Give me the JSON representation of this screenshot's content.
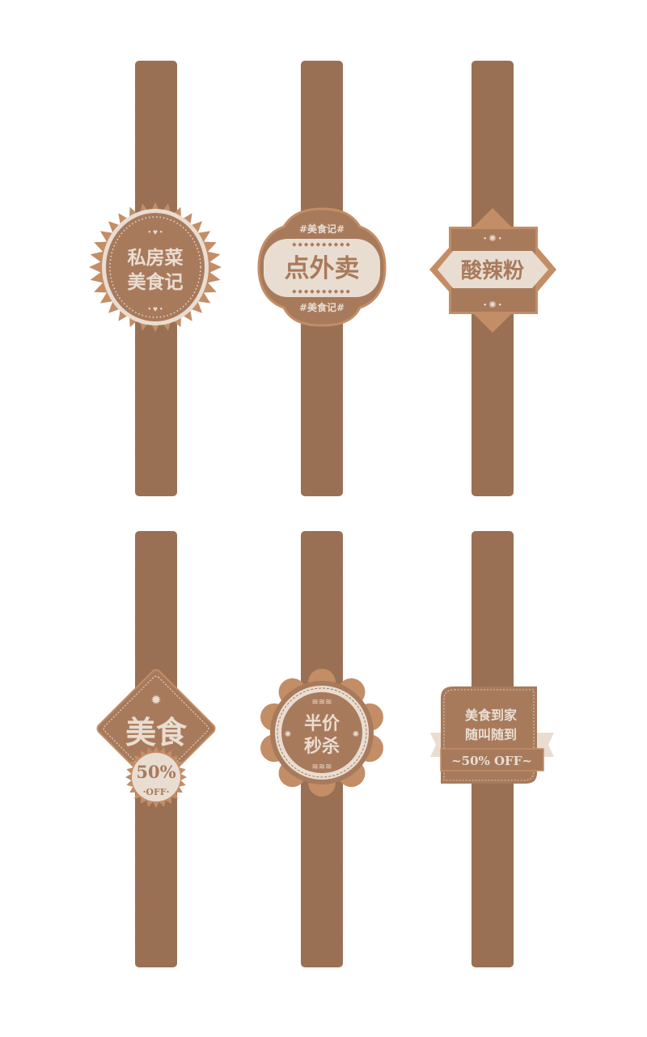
{
  "colors": {
    "band": "#9c7155",
    "badge": "#a87a5c",
    "accent": "#c38d66",
    "light": "#e9ddd1"
  },
  "labels": [
    {
      "lines": [
        "私房菜",
        "美食记"
      ]
    },
    {
      "top": "#美食记#",
      "main": "点外卖",
      "bottom": "#美食记#"
    },
    {
      "main": "酸辣粉"
    },
    {
      "main": "美食",
      "seal_top": "50%",
      "seal_bottom": "·OFF·"
    },
    {
      "lines": [
        "半价",
        "秒杀"
      ]
    },
    {
      "lines": [
        "美食到家",
        "随叫随到"
      ],
      "ribbon": "~50% OFF~"
    }
  ]
}
